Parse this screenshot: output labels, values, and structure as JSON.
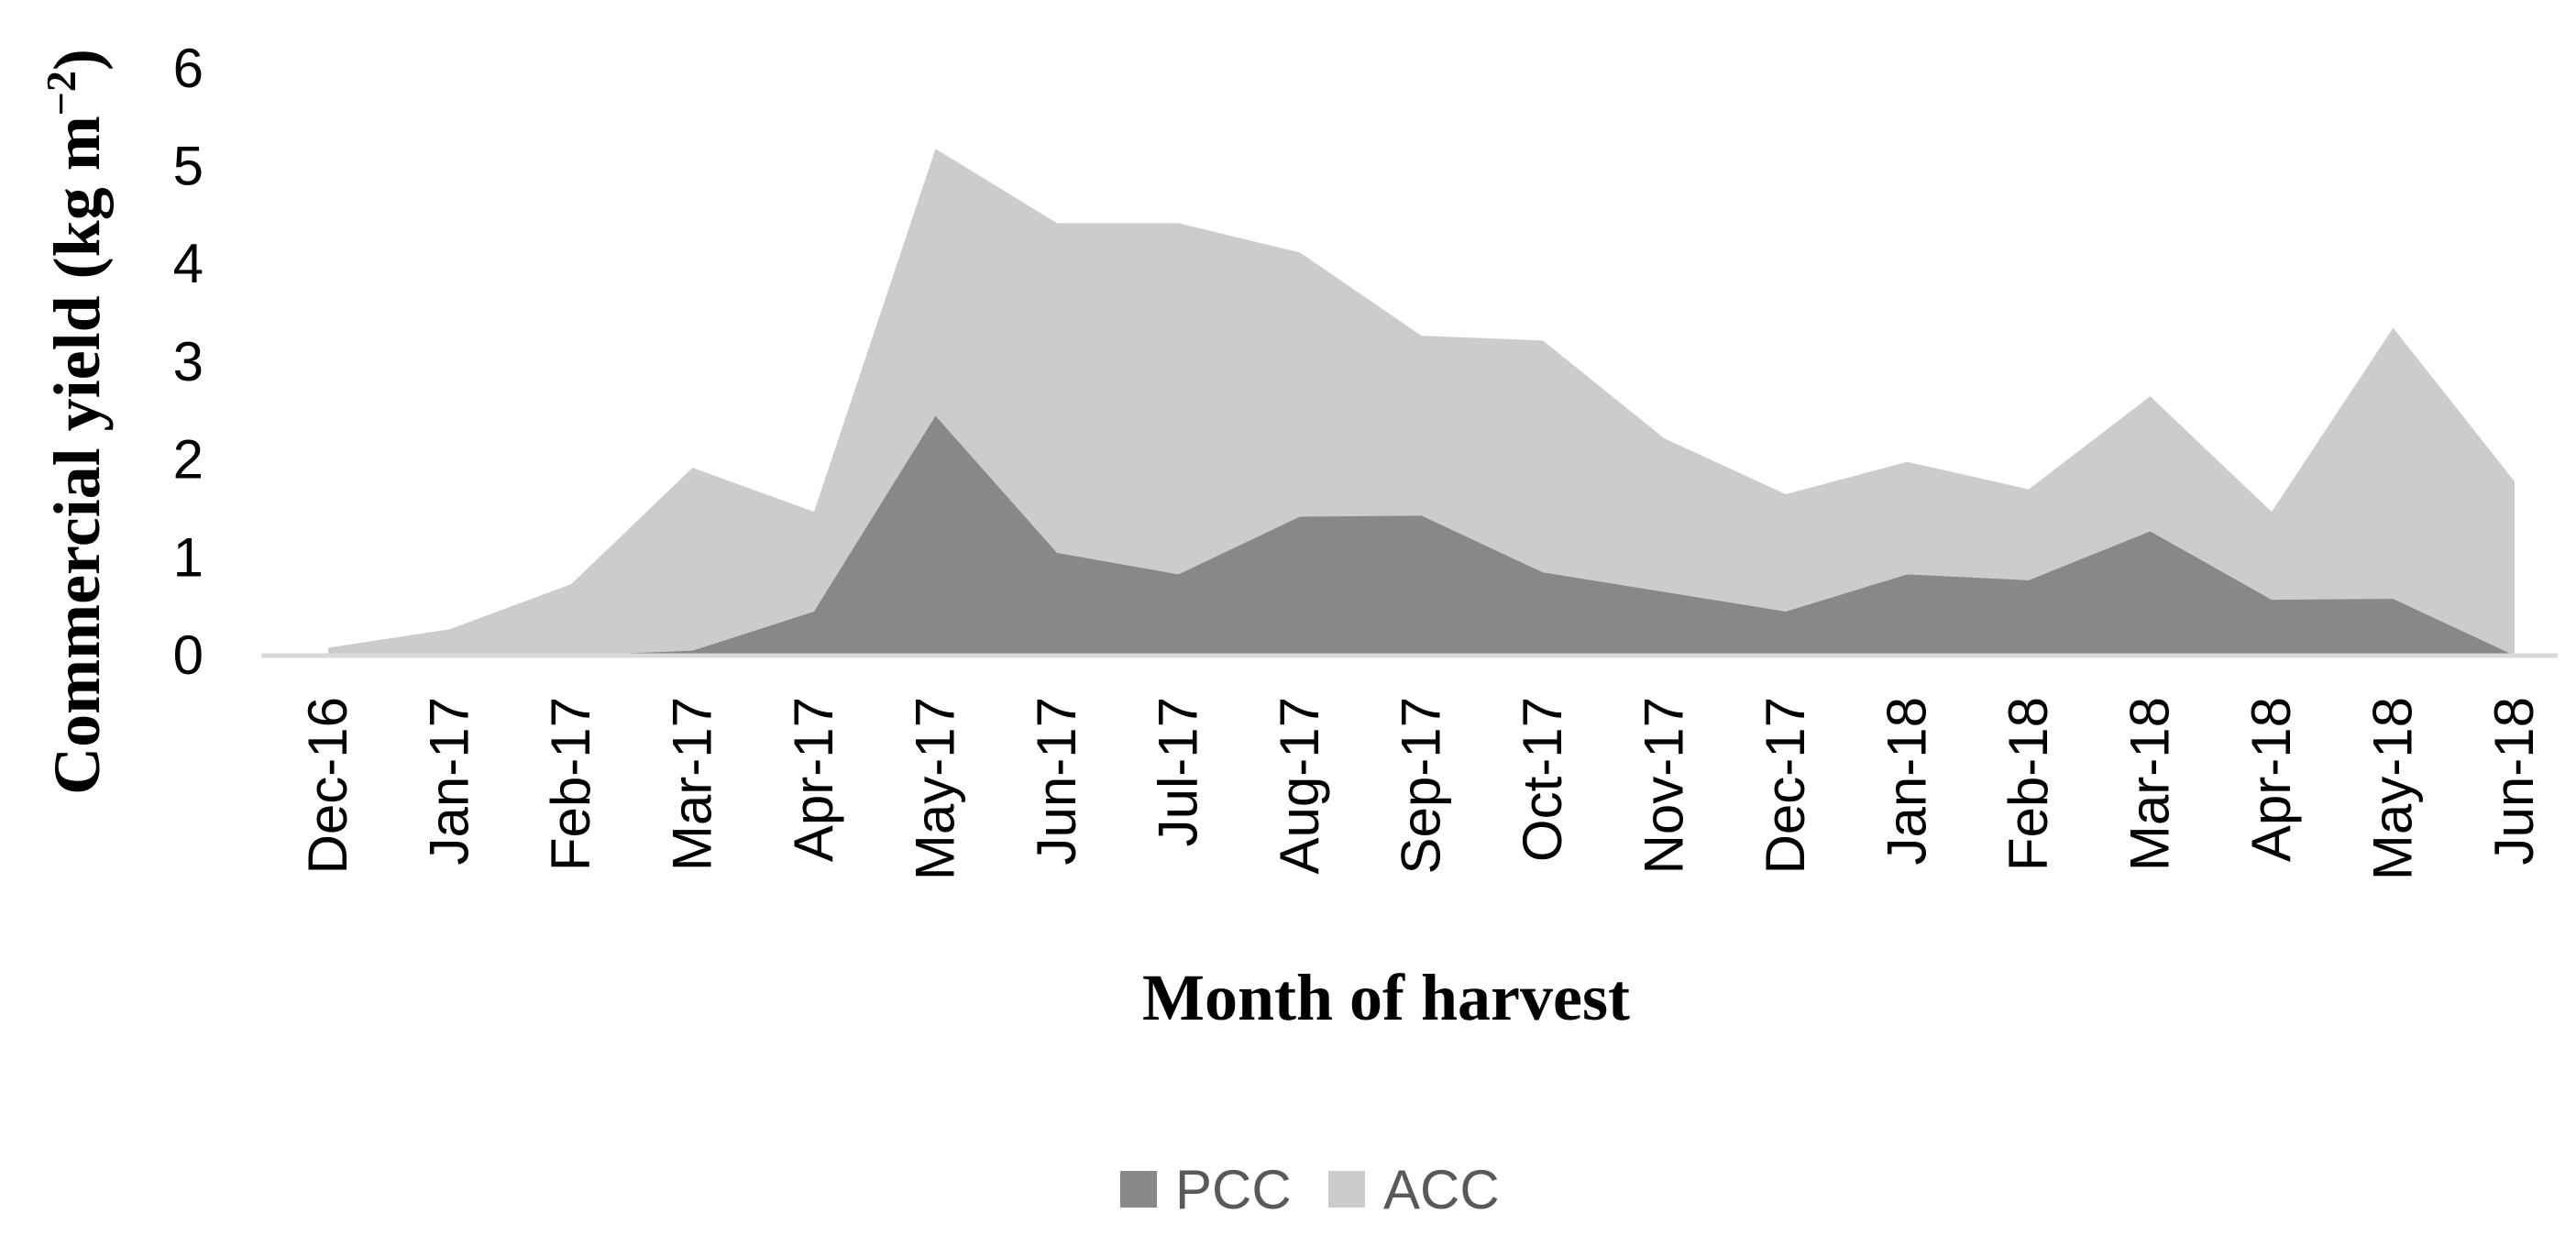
{
  "chart_data": {
    "type": "area",
    "stacked": false,
    "title": "",
    "xlabel": "Month of harvest",
    "ylabel": {
      "main": "Commercial yield (kg m",
      "superscript": "−2",
      "suffix": ")"
    },
    "ylim": [
      0,
      6
    ],
    "yticks": [
      "0",
      "1",
      "2",
      "3",
      "4",
      "5",
      "6"
    ],
    "grid": false,
    "legend_position": "bottom-center",
    "categories": [
      "Dec-16",
      "Jan-17",
      "Feb-17",
      "Mar-17",
      "Apr-17",
      "May-17",
      "Jun-17",
      "Jul-17",
      "Aug-17",
      "Sep-17",
      "Oct-17",
      "Nov-17",
      "Dec-17",
      "Jan-18",
      "Feb-18",
      "Mar-18",
      "Apr-18",
      "May-18",
      "Jun-18"
    ],
    "series": [
      {
        "name": "ACC",
        "color": "#cccccc",
        "values": [
          0.08,
          0.27,
          0.73,
          1.92,
          1.47,
          5.18,
          4.42,
          4.42,
          4.12,
          3.27,
          3.22,
          2.22,
          1.65,
          1.98,
          1.7,
          2.65,
          1.47,
          3.35,
          1.78
        ]
      },
      {
        "name": "PCC",
        "color": "#888888",
        "values": [
          0,
          0,
          0,
          0.05,
          0.45,
          2.45,
          1.05,
          0.83,
          1.42,
          1.43,
          0.85,
          0.65,
          0.45,
          0.83,
          0.77,
          1.27,
          0.57,
          0.58,
          0
        ]
      }
    ],
    "legend": [
      {
        "label": "PCC",
        "color": "#888888"
      },
      {
        "label": "ACC",
        "color": "#cccccc"
      }
    ],
    "axis_color": "#d9d9d9"
  }
}
